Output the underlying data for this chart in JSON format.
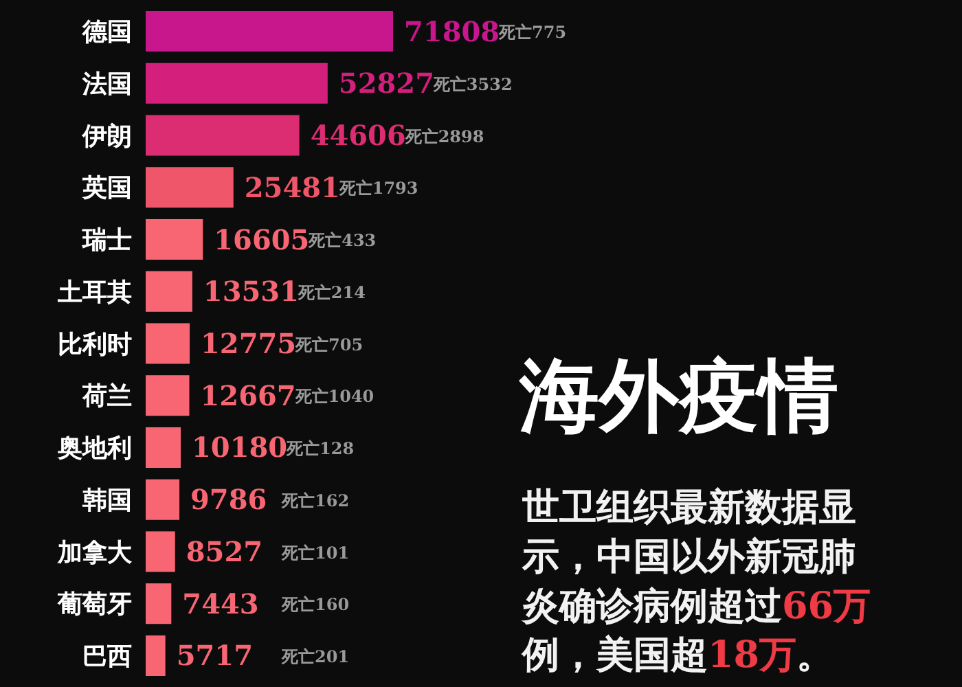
{
  "chart_data": {
    "type": "bar",
    "orientation": "horizontal",
    "title": "海外疫情",
    "subtitle": "世卫组织最新数据显示，中国以外新冠肺炎确诊病例超过66万例，美国超18万。",
    "categories": [
      "德国",
      "法国",
      "伊朗",
      "英国",
      "瑞士",
      "土耳其",
      "比利时",
      "荷兰",
      "奥地利",
      "韩国",
      "加拿大",
      "葡萄牙",
      "巴西"
    ],
    "values": [
      71808,
      52827,
      44606,
      25481,
      16605,
      13531,
      12775,
      12667,
      10180,
      9786,
      8527,
      7443,
      5717
    ],
    "colors": [
      "#c8168c",
      "#d41f7c",
      "#dc2d72",
      "#f0566a",
      "#f86674",
      "#f86674",
      "#f86674",
      "#f86674",
      "#f86674",
      "#f86674",
      "#f86674",
      "#f86674",
      "#f86674"
    ],
    "data_labels": true,
    "annotations": [
      "死亡775",
      "死亡3532",
      "死亡2898",
      "死亡1793",
      "死亡433",
      "死亡214",
      "死亡705",
      "死亡1040",
      "死亡128",
      "死亡162",
      "死亡101",
      "死亡160",
      "死亡201"
    ]
  }
}
